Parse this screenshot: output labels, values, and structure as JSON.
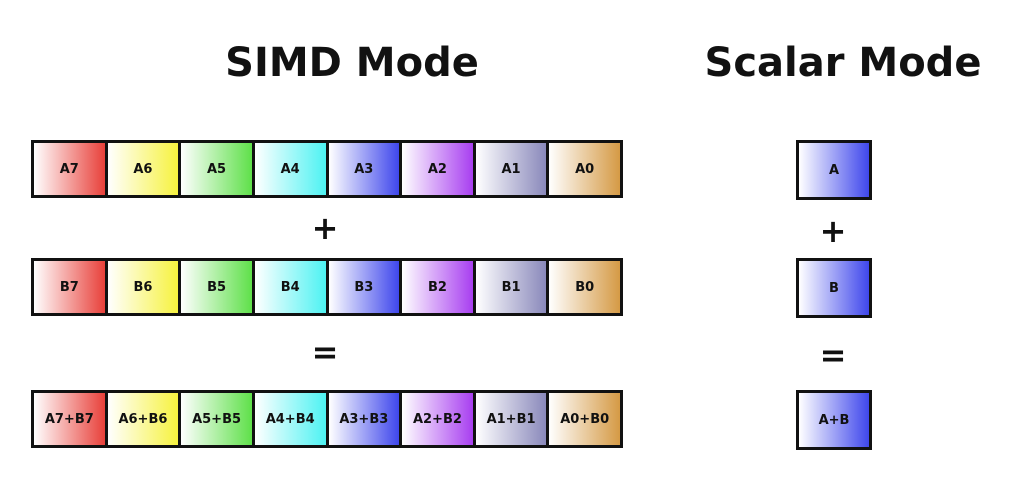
{
  "simd": {
    "title": "SIMD Mode",
    "row_a": [
      "A7",
      "A6",
      "A5",
      "A4",
      "A3",
      "A2",
      "A1",
      "A0"
    ],
    "plus": "+",
    "row_b": [
      "B7",
      "B6",
      "B5",
      "B4",
      "B3",
      "B2",
      "B1",
      "B0"
    ],
    "equals": "=",
    "row_c": [
      "A7+B7",
      "A6+B6",
      "A5+B5",
      "A4+B4",
      "A3+B3",
      "A2+B2",
      "A1+B1",
      "A0+B0"
    ]
  },
  "scalar": {
    "title": "Scalar Mode",
    "a": "A",
    "plus": "+",
    "b": "B",
    "equals": "=",
    "c": "A+B"
  },
  "lane_colors": [
    "#e8403a",
    "#f6f23f",
    "#5fe04a",
    "#4df2f2",
    "#3f47ec",
    "#a83ff0",
    "#8a89bb",
    "#d59a45"
  ],
  "scalar_color": "#3f47ec"
}
